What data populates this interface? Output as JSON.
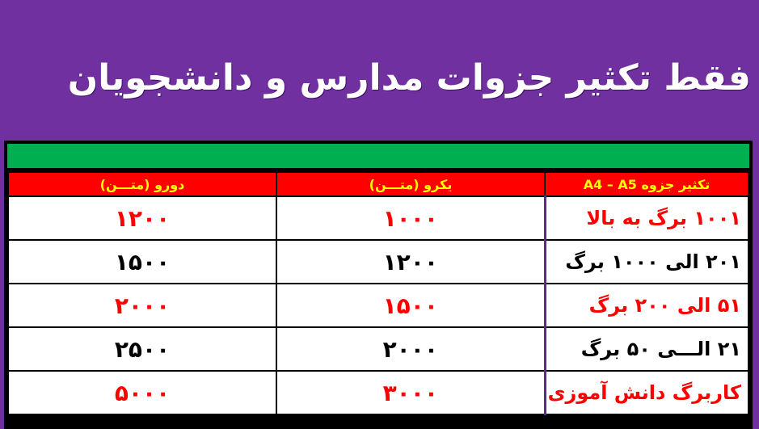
{
  "title": "فقط تکثیر جزوات مدارس و دانشجویان",
  "colors": {
    "background": "#7030a0",
    "green_bar": "#00b050",
    "header_bg": "#ff0000",
    "header_text": "#ffff00",
    "red_text": "#ff0000",
    "black_text": "#000000"
  },
  "table": {
    "headers": [
      "تکثیر جزوه A4 – A5",
      "یکرو (متـــن)",
      "دورو (متـــن)"
    ],
    "rows": [
      {
        "label": "۱۰۰۱  برگ به بالا",
        "single": "۱۰۰۰",
        "double": "۱۲۰۰",
        "color": "red"
      },
      {
        "label": "۲۰۱ الی ۱۰۰۰ برگ",
        "single": "۱۲۰۰",
        "double": "۱۵۰۰",
        "color": "black"
      },
      {
        "label": "۵۱  الی ۲۰۰ برگ",
        "single": "۱۵۰۰",
        "double": "۲۰۰۰",
        "color": "red"
      },
      {
        "label": "۲۱ الـــی ۵۰ برگ",
        "single": "۲۰۰۰",
        "double": "۲۵۰۰",
        "color": "black"
      },
      {
        "label": "کاربرگ دانش آموزی",
        "single": "۳۰۰۰",
        "double": "۵۰۰۰",
        "color": "red"
      }
    ]
  }
}
